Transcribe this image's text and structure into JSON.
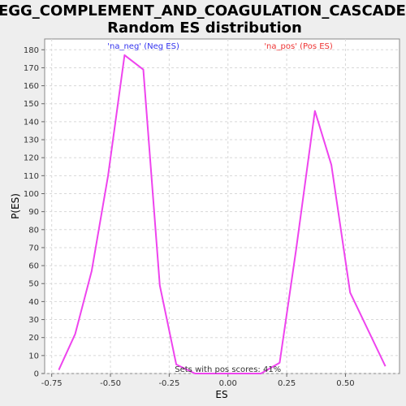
{
  "chart_data": {
    "type": "line",
    "title_lines": [
      "KEGG_COMPLEMENT_AND_COAGULATION_CASCADES:",
      "Random ES distribution"
    ],
    "xlabel": "ES",
    "ylabel": "P(ES)",
    "xlim": [
      -0.78,
      0.73
    ],
    "ylim": [
      0,
      186
    ],
    "x_ticks": [
      -0.75,
      -0.5,
      -0.25,
      0.0,
      0.25,
      0.5
    ],
    "x_tick_labels": [
      "-0.75",
      "-0.50",
      "-0.25",
      "0.00",
      "0.25",
      "0.50"
    ],
    "y_ticks": [
      0,
      10,
      20,
      30,
      40,
      50,
      60,
      70,
      80,
      90,
      100,
      110,
      120,
      130,
      140,
      150,
      160,
      170,
      180
    ],
    "y_tick_labels": [
      "0",
      "10",
      "20",
      "30",
      "40",
      "50",
      "60",
      "70",
      "80",
      "90",
      "100",
      "110",
      "120",
      "130",
      "140",
      "150",
      "160",
      "170",
      "180"
    ],
    "grid": true,
    "series": [
      {
        "color": "#ee44ee",
        "x": [
          -0.72,
          -0.65,
          -0.58,
          -0.51,
          -0.44,
          -0.36,
          -0.29,
          -0.22,
          -0.14,
          -0.07,
          0.0,
          0.07,
          0.14,
          0.22,
          0.29,
          0.37,
          0.44,
          0.52,
          0.67
        ],
        "y": [
          2,
          22,
          57,
          110,
          177,
          169,
          49,
          5,
          0,
          0,
          0,
          0,
          0,
          6,
          69,
          146,
          116,
          45,
          4
        ]
      }
    ],
    "annotations": [
      {
        "text": "'na_neg' (Neg ES)",
        "x": -0.36,
        "color": "#3333ee"
      },
      {
        "text": "'na_pos' (Pos ES)",
        "x": 0.3,
        "color": "#ee3333"
      },
      {
        "text": "Sets with pos scores: 41%",
        "x": 0.0
      }
    ]
  }
}
